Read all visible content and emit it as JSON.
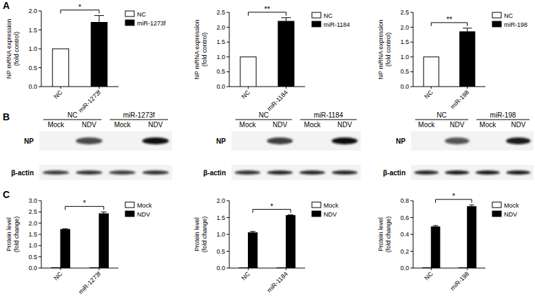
{
  "panel_labels": [
    "A",
    "B",
    "C"
  ],
  "chart_data": [
    {
      "type": "bar",
      "ylabel": "NP mRNA expression\n(fold control)",
      "categories": [
        "NC",
        "miR-1273f"
      ],
      "series": [
        {
          "name": "NC",
          "color": "#ffffff",
          "values": [
            1.0,
            null
          ],
          "errors": [
            null,
            null
          ]
        },
        {
          "name": "miR-1273f",
          "color": "#000000",
          "values": [
            null,
            1.7
          ],
          "errors": [
            null,
            0.18
          ]
        }
      ],
      "ylim": [
        0,
        2
      ],
      "yticks": [
        {
          "value": 0,
          "label": "0.0"
        },
        0.5,
        {
          "value": 1,
          "label": "1.0"
        },
        1.5,
        {
          "value": 2,
          "label": "2.0"
        }
      ],
      "legend": "right",
      "annotations": [
        {
          "text": "*",
          "categories": [
            "NC",
            "miR-1273f"
          ]
        }
      ]
    },
    {
      "type": "bar",
      "ylabel": "NP mRNA expression\n(fold control)",
      "categories": [
        "NC",
        "miR-1184"
      ],
      "series": [
        {
          "name": "NC",
          "color": "#ffffff",
          "values": [
            1.0,
            null
          ],
          "errors": [
            null,
            null
          ]
        },
        {
          "name": "miR-1184",
          "color": "#000000",
          "values": [
            null,
            2.2
          ],
          "errors": [
            null,
            0.12
          ]
        }
      ],
      "ylim": [
        0,
        2.5
      ],
      "yticks": [
        {
          "value": 0,
          "label": "0.0"
        },
        0.5,
        {
          "value": 1,
          "label": "1.0"
        },
        1.5,
        {
          "value": 2,
          "label": "2.0"
        },
        2.5
      ],
      "legend": "right",
      "annotations": [
        {
          "text": "**",
          "categories": [
            "NC",
            "miR-1184"
          ]
        }
      ]
    },
    {
      "type": "bar",
      "ylabel": "NP mRNA expression\n(fold control)",
      "categories": [
        "NC",
        "miR-198"
      ],
      "series": [
        {
          "name": "NC",
          "color": "#ffffff",
          "values": [
            1.0,
            null
          ],
          "errors": [
            null,
            null
          ]
        },
        {
          "name": "miR-198",
          "color": "#000000",
          "values": [
            null,
            1.85
          ],
          "errors": [
            null,
            0.12
          ]
        }
      ],
      "ylim": [
        0,
        2.5
      ],
      "yticks": [
        {
          "value": 0,
          "label": "0.0"
        },
        0.5,
        {
          "value": 1,
          "label": "1.0"
        },
        1.5,
        {
          "value": 2,
          "label": "2.0"
        },
        2.5
      ],
      "legend": "right",
      "annotations": [
        {
          "text": "**",
          "categories": [
            "NC",
            "miR-198"
          ]
        }
      ]
    },
    {
      "type": "bar",
      "ylabel": "Protein level\n(fold change)",
      "categories": [
        "NC",
        "miR-1273f"
      ],
      "series": [
        {
          "name": "Mock",
          "color": "#ffffff",
          "values": [
            0.02,
            0.02
          ],
          "errors": [
            null,
            null
          ]
        },
        {
          "name": "NDV",
          "color": "#000000",
          "values": [
            1.72,
            2.42
          ],
          "errors": [
            0.03,
            0.08
          ]
        }
      ],
      "ylim": [
        0,
        3
      ],
      "yticks": [
        {
          "value": 0,
          "label": "0.0"
        },
        0.5,
        {
          "value": 1,
          "label": "1.0"
        },
        1.5,
        {
          "value": 2,
          "label": "2.0"
        },
        2.5,
        {
          "value": 3,
          "label": "3.0"
        }
      ],
      "legend": "right",
      "annotations": [
        {
          "text": "*",
          "categories": [
            "NC",
            "miR-1273f"
          ],
          "series": "NDV"
        }
      ]
    },
    {
      "type": "bar",
      "ylabel": "Protein level\n(fold change)",
      "categories": [
        "NC",
        "miR-1184"
      ],
      "series": [
        {
          "name": "Mock",
          "color": "#ffffff",
          "values": [
            0.01,
            0.01
          ],
          "errors": [
            null,
            null
          ]
        },
        {
          "name": "NDV",
          "color": "#000000",
          "values": [
            1.05,
            1.56
          ],
          "errors": [
            0.04,
            0.02
          ]
        }
      ],
      "ylim": [
        0,
        2
      ],
      "yticks": [
        {
          "value": 0,
          "label": "0.0"
        },
        0.5,
        {
          "value": 1,
          "label": "1.0"
        },
        1.5,
        {
          "value": 2,
          "label": "2.0"
        }
      ],
      "legend": "right",
      "annotations": [
        {
          "text": "*",
          "categories": [
            "NC",
            "miR-1184"
          ],
          "series": "NDV"
        }
      ]
    },
    {
      "type": "bar",
      "ylabel": "Protein level\n(fold change)",
      "categories": [
        "NC",
        "miR-198"
      ],
      "series": [
        {
          "name": "Mock",
          "color": "#ffffff",
          "values": [
            0.005,
            0.005
          ],
          "errors": [
            null,
            null
          ]
        },
        {
          "name": "NDV",
          "color": "#000000",
          "values": [
            0.49,
            0.73
          ],
          "errors": [
            0.015,
            0.02
          ]
        }
      ],
      "ylim": [
        0,
        0.8
      ],
      "yticks": [
        {
          "value": 0,
          "label": "0.0"
        },
        0.2,
        0.4,
        0.6,
        0.8
      ],
      "legend": "right",
      "annotations": [
        {
          "text": "*",
          "categories": [
            "NC",
            "miR-198"
          ],
          "series": "NDV"
        }
      ]
    }
  ],
  "blots": [
    {
      "groups": [
        "NC",
        "miR-1273f"
      ],
      "lanes": [
        "Mock",
        "NDV",
        "Mock",
        "NDV"
      ],
      "rows": [
        {
          "label": "NP",
          "bands": [
            0,
            0.75,
            0,
            1
          ]
        },
        {
          "label": "β-actin",
          "bands": [
            0.8,
            0.85,
            0.8,
            0.85
          ]
        }
      ]
    },
    {
      "groups": [
        "NC",
        "miR-1184"
      ],
      "lanes": [
        "Mock",
        "NDV",
        "Mock",
        "NDV"
      ],
      "rows": [
        {
          "label": "NP",
          "bands": [
            0,
            0.8,
            0,
            1
          ]
        },
        {
          "label": "β-actin",
          "bands": [
            0.85,
            0.9,
            0.9,
            0.9
          ]
        }
      ]
    },
    {
      "groups": [
        "NC",
        "miR-198"
      ],
      "lanes": [
        "Mock",
        "NDV",
        "Mock",
        "NDV"
      ],
      "rows": [
        {
          "label": "NP",
          "bands": [
            0,
            0.7,
            0,
            0.95
          ]
        },
        {
          "label": "β-actin",
          "bands": [
            0.9,
            0.95,
            0.95,
            0.95
          ]
        }
      ]
    }
  ]
}
